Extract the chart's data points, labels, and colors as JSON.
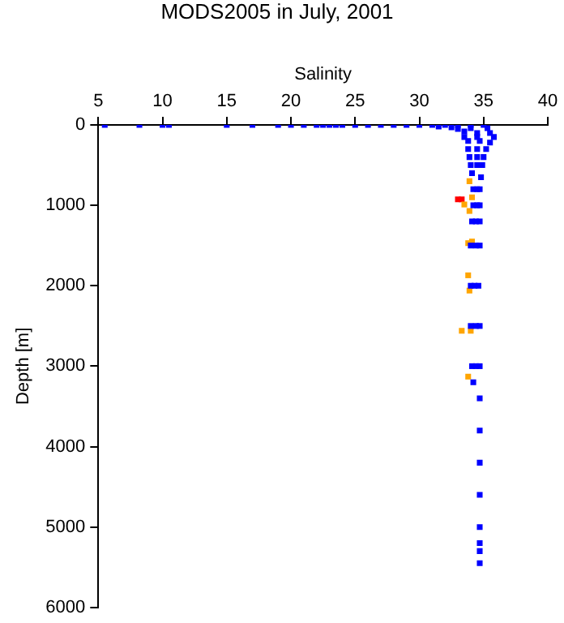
{
  "chart_data": {
    "type": "scatter",
    "title": "MODS2005 in July, 2001",
    "xlabel": "Salinity",
    "ylabel": "Depth [m]",
    "xlim": [
      5,
      40
    ],
    "xticks": [
      5,
      10,
      15,
      20,
      25,
      30,
      35,
      40
    ],
    "ylim": [
      6000,
      0
    ],
    "yticks": [
      0,
      1000,
      2000,
      3000,
      4000,
      5000,
      6000
    ],
    "grid": false,
    "marker": "square",
    "legend": false,
    "series": [
      {
        "color": "#0000ff",
        "x": [
          5.5,
          8.2,
          10,
          10.5,
          15,
          17,
          19,
          20,
          21,
          22,
          22.5,
          23,
          23.5,
          24,
          25,
          26,
          27,
          28,
          29,
          30,
          31,
          32,
          33,
          34,
          35,
          31.5,
          32.5,
          33,
          34,
          35.3,
          33.5,
          34.5,
          35.5,
          33.5,
          34.5,
          35.8,
          33.8,
          34.7,
          35.5,
          33.8,
          34.5,
          35.2,
          33.9,
          34.5,
          35,
          34,
          34.5,
          34.9,
          34.1,
          34.8,
          34.2,
          34.5,
          34.7,
          34.2,
          34.5,
          34.7,
          34.1,
          34.4,
          34.7,
          34,
          34.4,
          34.7,
          34,
          34.3,
          34.6,
          34,
          34.4,
          34.7,
          34.1,
          34.4,
          34.7,
          34.2,
          34.7,
          34.7,
          34.7,
          34.7,
          34.7,
          34.7,
          34.7,
          34.7
        ],
        "values": [
          0,
          0,
          0,
          0,
          0,
          0,
          0,
          0,
          0,
          0,
          0,
          0,
          0,
          0,
          0,
          0,
          0,
          0,
          0,
          0,
          0,
          0,
          0,
          0,
          0,
          20,
          30,
          50,
          40,
          40,
          80,
          100,
          100,
          150,
          150,
          150,
          200,
          200,
          220,
          300,
          300,
          300,
          400,
          400,
          400,
          500,
          500,
          500,
          600,
          650,
          800,
          800,
          800,
          1000,
          1000,
          1000,
          1200,
          1200,
          1200,
          1500,
          1500,
          1500,
          2000,
          2000,
          2000,
          2500,
          2500,
          2500,
          3000,
          3000,
          3000,
          3200,
          3400,
          3800,
          4200,
          4600,
          5000,
          5200,
          5300,
          5450
        ]
      },
      {
        "color": "#ffa500",
        "x": [
          33.9,
          34.1,
          33.5,
          33.9,
          34.1,
          33.8,
          33.8,
          33.9,
          33.3,
          34.0,
          33.8
        ],
        "values": [
          700,
          900,
          990,
          1070,
          1450,
          1470,
          1870,
          2060,
          2560,
          2560,
          3130
        ]
      },
      {
        "color": "#ff0000",
        "x": [
          33.0,
          33.3
        ],
        "values": [
          925,
          925
        ]
      }
    ]
  }
}
